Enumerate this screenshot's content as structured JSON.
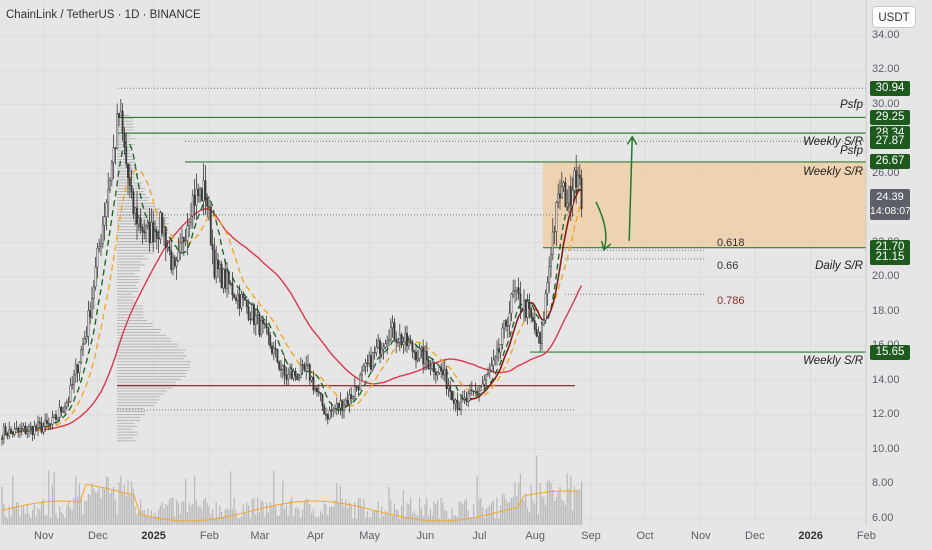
{
  "header": {
    "title": "ChainLink / TetherUS · 1D · BINANCE",
    "currency_button": "USDT"
  },
  "colors": {
    "bg": "#e6e6e6",
    "candle": "#3a3a3a",
    "level_green": "#2f7d32",
    "sma_red": "#e0364b",
    "ema_orange": "#f5a623",
    "ema_green": "#1d6b2a",
    "ma_darkred": "#8b1a1a",
    "zone": "#f3c78f",
    "volume": "#b8b8b8",
    "arrow": "#1f7a2e"
  },
  "chart_data": {
    "type": "candlestick",
    "title": "ChainLink / TetherUS · 1D · BINANCE",
    "yaxis": {
      "ticks": [
        "6.00",
        "8.00",
        "10.00",
        "12.00",
        "14.00",
        "16.00",
        "18.00",
        "20.00",
        "22.00",
        "24.00",
        "26.00",
        "28.00",
        "30.00",
        "32.00",
        "34.00"
      ],
      "range": [
        5.8,
        35.6
      ]
    },
    "xaxis": {
      "ticks": [
        {
          "label": "Nov",
          "date": "2024-11-01",
          "bold": false
        },
        {
          "label": "Dec",
          "date": "2024-12-01",
          "bold": false
        },
        {
          "label": "2025",
          "date": "2025-01-01",
          "bold": true
        },
        {
          "label": "Feb",
          "date": "2025-02-01",
          "bold": false
        },
        {
          "label": "Mar",
          "date": "2025-03-01",
          "bold": false
        },
        {
          "label": "Apr",
          "date": "2025-04-01",
          "bold": false
        },
        {
          "label": "May",
          "date": "2025-05-01",
          "bold": false
        },
        {
          "label": "Jun",
          "date": "2025-06-01",
          "bold": false
        },
        {
          "label": "Jul",
          "date": "2025-07-01",
          "bold": false
        },
        {
          "label": "Aug",
          "date": "2025-08-01",
          "bold": false
        },
        {
          "label": "Sep",
          "date": "2025-09-01",
          "bold": false
        },
        {
          "label": "Oct",
          "date": "2025-10-01",
          "bold": false
        },
        {
          "label": "Nov",
          "date": "2025-11-01",
          "bold": false
        },
        {
          "label": "Dec",
          "date": "2025-12-01",
          "bold": false
        },
        {
          "label": "2026",
          "date": "2026-01-01",
          "bold": true
        },
        {
          "label": "Feb",
          "date": "2026-02-01",
          "bold": false
        }
      ]
    },
    "price_path": [
      [
        "2024-10-15",
        11.0
      ],
      [
        "2024-11-05",
        11.4
      ],
      [
        "2024-11-15",
        13.0
      ],
      [
        "2024-11-25",
        17.0
      ],
      [
        "2024-12-05",
        24.0
      ],
      [
        "2024-12-13",
        29.5
      ],
      [
        "2024-12-20",
        24.0
      ],
      [
        "2024-12-28",
        22.5
      ],
      [
        "2025-01-06",
        23.0
      ],
      [
        "2025-01-13",
        20.0
      ],
      [
        "2025-01-22",
        24.5
      ],
      [
        "2025-01-30",
        25.0
      ],
      [
        "2025-02-04",
        20.5
      ],
      [
        "2025-02-12",
        19.5
      ],
      [
        "2025-02-24",
        18.0
      ],
      [
        "2025-03-05",
        16.5
      ],
      [
        "2025-03-15",
        14.2
      ],
      [
        "2025-03-28",
        14.5
      ],
      [
        "2025-04-07",
        12.0
      ],
      [
        "2025-04-20",
        13.0
      ],
      [
        "2025-05-01",
        15.0
      ],
      [
        "2025-05-12",
        17.0
      ],
      [
        "2025-05-25",
        15.8
      ],
      [
        "2025-06-10",
        14.5
      ],
      [
        "2025-06-20",
        12.5
      ],
      [
        "2025-07-01",
        13.5
      ],
      [
        "2025-07-10",
        15.0
      ],
      [
        "2025-07-20",
        19.0
      ],
      [
        "2025-07-28",
        18.0
      ],
      [
        "2025-08-04",
        16.0
      ],
      [
        "2025-08-10",
        22.0
      ],
      [
        "2025-08-15",
        25.0
      ],
      [
        "2025-08-20",
        24.5
      ],
      [
        "2025-08-23",
        26.5
      ],
      [
        "2025-08-27",
        24.39
      ]
    ],
    "levels": [
      {
        "price": 30.94,
        "label": "30.94",
        "line": "dotted",
        "tag": ""
      },
      {
        "price": 29.25,
        "label": "29.25",
        "line": "solid",
        "tag": "Psfp"
      },
      {
        "price": 28.34,
        "label": "28.34",
        "line": "solid",
        "tag": "Weekly S/R"
      },
      {
        "price": 27.87,
        "label": "27.87",
        "line": "dotted",
        "tag": ""
      },
      {
        "price": 26.67,
        "label": "26.67",
        "line": "solid",
        "tag": "Psfp"
      },
      {
        "price": 21.7,
        "label": "21.70",
        "line": "solid",
        "tag": ""
      },
      {
        "price": 21.15,
        "label": "21.15",
        "line": "none",
        "tag": "Daily S/R"
      },
      {
        "price": 15.65,
        "label": "15.65",
        "line": "solid",
        "tag": "Weekly S/R"
      }
    ],
    "zone_tag": "Weekly S/R",
    "current_price": {
      "value": "24.39",
      "countdown": "14:08:07"
    },
    "fib_levels": [
      {
        "ratio": "0.618",
        "price": 21.55
      },
      {
        "ratio": "0.66",
        "price": 21.05
      },
      {
        "ratio": "0.786",
        "price": 19.0
      }
    ],
    "poc_price": 13.7,
    "value_area_low": 12.3,
    "value_area_high": 23.6,
    "projection": [
      [
        "2025-08-27",
        24.0
      ],
      [
        "2025-09-10",
        21.4
      ],
      [
        "2025-09-25",
        28.3
      ]
    ]
  }
}
